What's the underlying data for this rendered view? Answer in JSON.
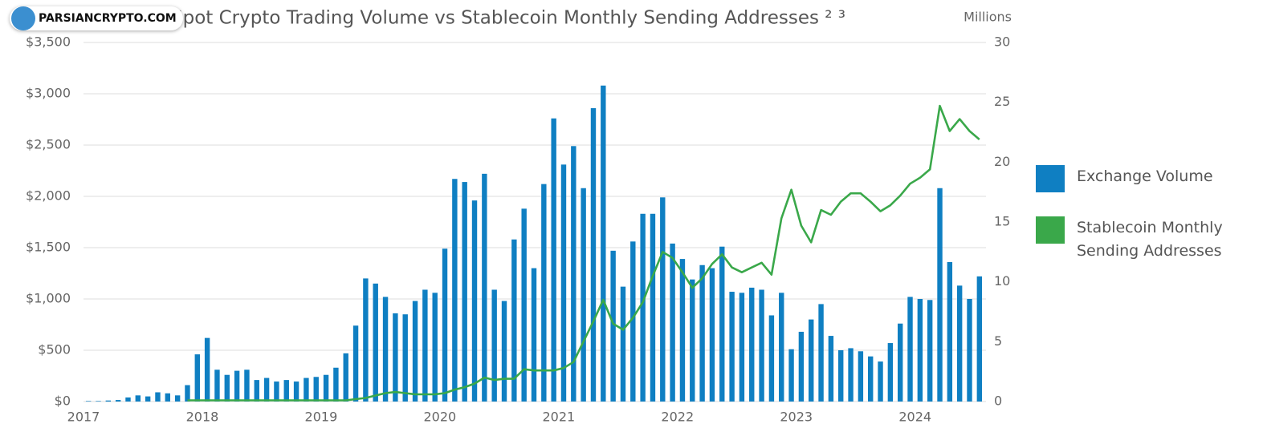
{
  "watermark": "PARSIANCRYPTO.COM",
  "chart_data": {
    "type": "bar-line",
    "title": "Spot Crypto Trading Volume vs Stablecoin Monthly Sending Addresses ² ³",
    "y2_unit": "Millions",
    "categories": [
      "2017",
      null,
      null,
      null,
      null,
      null,
      null,
      null,
      null,
      null,
      null,
      null,
      "2018",
      null,
      null,
      null,
      null,
      null,
      null,
      null,
      null,
      null,
      null,
      null,
      "2019",
      null,
      null,
      null,
      null,
      null,
      null,
      null,
      null,
      null,
      null,
      null,
      "2020",
      null,
      null,
      null,
      null,
      null,
      null,
      null,
      null,
      null,
      null,
      null,
      "2021",
      null,
      null,
      null,
      null,
      null,
      null,
      null,
      null,
      null,
      null,
      null,
      "2022",
      null,
      null,
      null,
      null,
      null,
      null,
      null,
      null,
      null,
      null,
      null,
      "2023",
      null,
      null,
      null,
      null,
      null,
      null,
      null,
      null,
      null,
      null,
      null,
      "2024",
      null,
      null,
      null,
      null,
      null,
      null
    ],
    "series": [
      {
        "name": "Exchange Volume",
        "color": "#0f7fc2",
        "kind": "bar",
        "values": [
          5,
          5,
          10,
          15,
          40,
          60,
          50,
          90,
          80,
          60,
          160,
          460,
          620,
          310,
          260,
          300,
          310,
          210,
          230,
          195,
          210,
          195,
          230,
          240,
          260,
          330,
          470,
          740,
          1200,
          1150,
          1020,
          860,
          850,
          980,
          1090,
          1060,
          1490,
          2170,
          2140,
          1960,
          2220,
          1090,
          980,
          1580,
          1880,
          1300,
          2120,
          2760,
          2310,
          2490,
          2080,
          2860,
          3080,
          1470,
          1120,
          1560,
          1830,
          1830,
          1990,
          1540,
          1390,
          1190,
          1330,
          1300,
          1510,
          1070,
          1060,
          1110,
          1090,
          840,
          1060,
          510,
          680,
          800,
          950,
          640,
          500,
          520,
          490,
          440,
          390,
          570,
          760,
          1020,
          1000,
          990,
          2080,
          1360,
          1130,
          1000,
          1220
        ]
      },
      {
        "name": "Stablecoin Monthly Sending Addresses",
        "color": "#3aa84a",
        "kind": "line",
        "axis": "y2",
        "values": [
          null,
          null,
          null,
          null,
          null,
          null,
          null,
          null,
          null,
          null,
          0.1,
          0.1,
          0.1,
          0.1,
          0.1,
          0.1,
          0.1,
          0.1,
          0.1,
          0.1,
          0.1,
          0.1,
          0.1,
          0.1,
          0.1,
          0.1,
          0.1,
          0.2,
          0.3,
          0.5,
          0.7,
          0.8,
          0.7,
          0.6,
          0.6,
          0.6,
          0.7,
          1.0,
          1.2,
          1.5,
          2.0,
          1.8,
          1.9,
          1.9,
          2.7,
          2.6,
          2.6,
          2.6,
          2.8,
          3.3,
          5.0,
          6.7,
          8.5,
          6.5,
          6.0,
          7.0,
          8.3,
          10.5,
          12.5,
          12.0,
          10.8,
          9.5,
          10.3,
          11.5,
          12.3,
          11.2,
          10.8,
          11.2,
          11.6,
          10.6,
          15.3,
          17.7,
          14.7,
          13.3,
          16.0,
          15.6,
          16.7,
          17.4,
          17.4,
          16.7,
          15.9,
          16.4,
          17.2,
          18.2,
          18.7,
          19.4,
          24.7,
          22.6,
          23.6,
          22.6,
          21.9
        ]
      }
    ],
    "ylim": [
      0,
      3500
    ],
    "yticks": [
      {
        "value": 0,
        "label": "$0"
      },
      {
        "value": 500,
        "label": "$500"
      },
      {
        "value": 1000,
        "label": "$1,000"
      },
      {
        "value": 1500,
        "label": "$1,500"
      },
      {
        "value": 2000,
        "label": "$2,000"
      },
      {
        "value": 2500,
        "label": "$2,500"
      },
      {
        "value": 3000,
        "label": "$3,000"
      },
      {
        "value": 3500,
        "label": "$3,500"
      }
    ],
    "y2lim": [
      0,
      30
    ],
    "y2ticks": [
      0,
      5,
      10,
      15,
      20,
      25,
      30
    ],
    "grid": true,
    "legend": "right"
  }
}
